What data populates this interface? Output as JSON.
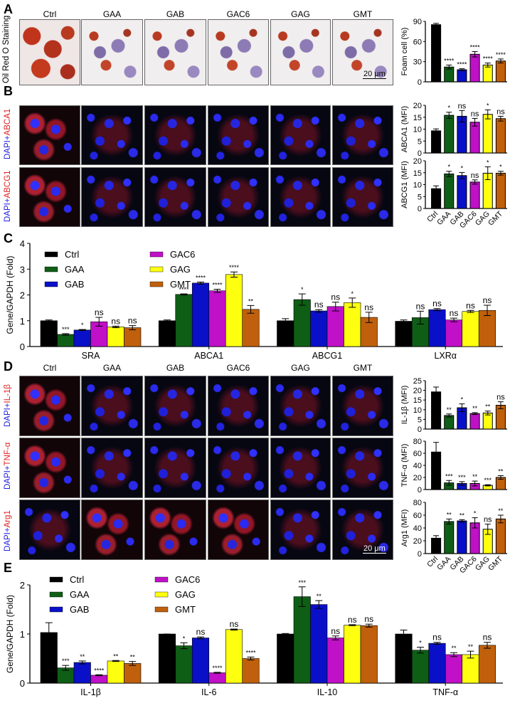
{
  "groups": [
    "Ctrl",
    "GAA",
    "GAB",
    "GAC6",
    "GAG",
    "GMT"
  ],
  "colors": {
    "Ctrl": "#000000",
    "GAA": "#0f5e16",
    "GAB": "#0a10c8",
    "GAC6": "#c010c8",
    "GAG": "#ffff10",
    "GMT": "#c0600c"
  },
  "panels": {
    "A": {
      "label": "A",
      "row_label": "Oil Red O Staining",
      "scale": "20 μm"
    },
    "B": {
      "label": "B",
      "row_labels": [
        {
          "dapi": "DAPI",
          "plus": "+",
          "marker": "ABCA1"
        },
        {
          "dapi": "DAPI",
          "plus": "+",
          "marker": "ABCG1"
        }
      ]
    },
    "C": {
      "label": "C"
    },
    "D": {
      "label": "D",
      "row_labels": [
        {
          "dapi": "DAPI",
          "plus": "+",
          "marker": "IL-1β"
        },
        {
          "dapi": "DAPI",
          "plus": "+",
          "marker": "TNF-α"
        },
        {
          "dapi": "DAPI",
          "plus": "+",
          "marker": "Arg1"
        }
      ],
      "scale": "20 μm"
    },
    "E": {
      "label": "E"
    }
  },
  "chart_data": [
    {
      "id": "A-foam",
      "type": "bar",
      "title": "",
      "ylabel": "Foam cell (%)",
      "ylim": [
        0,
        90
      ],
      "yticks": [
        0,
        30,
        60,
        90
      ],
      "categories": [
        "Ctrl",
        "GAA",
        "GAB",
        "GAC6",
        "GAG",
        "GMT"
      ],
      "values": [
        85,
        22,
        18,
        41,
        25,
        31
      ],
      "errors": [
        2,
        3,
        1.5,
        4,
        3,
        3
      ],
      "sig": [
        "",
        "****",
        "****",
        "****",
        "****",
        "****"
      ]
    },
    {
      "id": "B-abca1",
      "type": "bar",
      "ylabel": "ABCA1 (MFI)",
      "ylim": [
        0,
        20
      ],
      "yticks": [
        0,
        5,
        10,
        15,
        20
      ],
      "categories": [
        "Ctrl",
        "GAA",
        "GAB",
        "GAC6",
        "GAG",
        "GMT"
      ],
      "values": [
        9.3,
        15.8,
        15.4,
        12.9,
        16.2,
        14.4
      ],
      "errors": [
        0.8,
        1.3,
        2.4,
        1.6,
        1.9,
        1.0
      ],
      "sig": [
        "",
        "*",
        "ns",
        "ns",
        "*",
        "ns"
      ]
    },
    {
      "id": "B-abcg1",
      "type": "bar",
      "ylabel": "ABCG1  (MFI)",
      "ylim": [
        0,
        20
      ],
      "yticks": [
        0,
        5,
        10,
        15,
        20
      ],
      "categories": [
        "Ctrl",
        "GAA",
        "GAB",
        "GAC6",
        "GAG",
        "GMT"
      ],
      "values": [
        8.3,
        14.5,
        13.8,
        11.1,
        14.8,
        14.8
      ],
      "errors": [
        1.2,
        1.1,
        1.3,
        0.9,
        2.7,
        0.8
      ],
      "sig": [
        "",
        "*",
        "*",
        "ns",
        "*",
        "*"
      ]
    },
    {
      "id": "C-genes",
      "type": "bar",
      "ylabel": "Gene/GAPDH (Fold)",
      "ylim": [
        0,
        4
      ],
      "yticks": [
        0,
        1,
        2,
        3,
        4
      ],
      "categories": [
        "SRA",
        "ABCA1",
        "ABCG1",
        "LXRα"
      ],
      "legend": [
        "Ctrl",
        "GAA",
        "GAB",
        "GAC6",
        "GAG",
        "GMT"
      ],
      "series": [
        {
          "name": "Ctrl",
          "values": [
            1.0,
            1.0,
            1.0,
            0.98
          ],
          "errors": [
            0.03,
            0.03,
            0.08,
            0.05
          ],
          "sig": [
            "",
            "",
            "",
            ""
          ]
        },
        {
          "name": "GAA",
          "values": [
            0.47,
            2.02,
            1.82,
            1.12
          ],
          "errors": [
            0.03,
            0.02,
            0.22,
            0.25
          ],
          "sig": [
            "***",
            "****",
            "*",
            "ns"
          ]
        },
        {
          "name": "GAB",
          "values": [
            0.64,
            2.46,
            1.38,
            1.43
          ],
          "errors": [
            0.02,
            0.04,
            0.05,
            0.04
          ],
          "sig": [
            "*",
            "****",
            "ns",
            "ns"
          ]
        },
        {
          "name": "GAC6",
          "values": [
            0.96,
            2.16,
            1.55,
            1.03
          ],
          "errors": [
            0.17,
            0.06,
            0.17,
            0.07
          ],
          "sig": [
            "ns",
            "****",
            "ns",
            "ns"
          ]
        },
        {
          "name": "GAG",
          "values": [
            0.76,
            2.79,
            1.7,
            1.36
          ],
          "errors": [
            0.03,
            0.1,
            0.18,
            0.04
          ],
          "sig": [
            "ns",
            "****",
            "*",
            "ns"
          ]
        },
        {
          "name": "GMT",
          "values": [
            0.73,
            1.44,
            1.13,
            1.4
          ],
          "errors": [
            0.08,
            0.15,
            0.2,
            0.2
          ],
          "sig": [
            "ns",
            "**",
            "ns",
            "ns"
          ]
        }
      ]
    },
    {
      "id": "D-il1b",
      "type": "bar",
      "ylabel": "IL-1β (MFI)",
      "ylim": [
        0,
        25
      ],
      "yticks": [
        0,
        5,
        10,
        15,
        20,
        25
      ],
      "categories": [
        "Ctrl",
        "GAA",
        "GAB",
        "GAC6",
        "GAG",
        "GMT"
      ],
      "values": [
        19.2,
        7.0,
        11.0,
        8.0,
        8.3,
        12.3
      ],
      "errors": [
        2.5,
        0.8,
        2.0,
        0.5,
        1.0,
        1.8
      ],
      "sig": [
        "",
        "**",
        "*",
        "**",
        "**",
        "ns"
      ]
    },
    {
      "id": "D-tnfa",
      "type": "bar",
      "ylabel": "TNF-α (MFI)",
      "ylim": [
        0,
        80
      ],
      "yticks": [
        0,
        20,
        40,
        60,
        80
      ],
      "categories": [
        "Ctrl",
        "GAA",
        "GAB",
        "GAC6",
        "GAG",
        "GMT"
      ],
      "values": [
        62,
        11,
        10,
        10,
        7,
        20
      ],
      "errors": [
        16,
        4,
        3,
        4,
        1,
        3
      ],
      "sig": [
        "",
        "***",
        "***",
        "**",
        "***",
        "**"
      ]
    },
    {
      "id": "D-arg1",
      "type": "bar",
      "ylabel": "Arg1 (MFI)",
      "ylim": [
        0,
        80
      ],
      "yticks": [
        0,
        20,
        40,
        60,
        80
      ],
      "categories": [
        "Ctrl",
        "GAA",
        "GAB",
        "GAC6",
        "GAG",
        "GMT"
      ],
      "values": [
        24,
        50,
        51,
        48,
        38,
        54
      ],
      "errors": [
        4,
        4,
        2,
        8,
        8,
        6
      ],
      "sig": [
        "",
        "**",
        "**",
        "*",
        "ns",
        "**"
      ]
    },
    {
      "id": "E-genes",
      "type": "bar",
      "ylabel": "Gene/GAPDH (Fold)",
      "ylim": [
        0,
        2
      ],
      "yticks": [
        0,
        1,
        2
      ],
      "categories": [
        "IL-1β",
        "IL-6",
        "IL-10",
        "TNF-α"
      ],
      "legend": [
        "Ctrl",
        "GAA",
        "GAB",
        "GAC6",
        "GAG",
        "GMT"
      ],
      "series": [
        {
          "name": "Ctrl",
          "values": [
            1.03,
            1.0,
            1.0,
            1.0
          ],
          "errors": [
            0.2,
            0.0,
            0.01,
            0.08
          ],
          "sig": [
            "",
            "",
            "",
            ""
          ]
        },
        {
          "name": "GAA",
          "values": [
            0.31,
            0.76,
            1.76,
            0.67
          ],
          "errors": [
            0.05,
            0.06,
            0.2,
            0.06
          ],
          "sig": [
            "***",
            "*",
            "***",
            "*"
          ]
        },
        {
          "name": "GAB",
          "values": [
            0.42,
            0.92,
            1.6,
            0.81
          ],
          "errors": [
            0.03,
            0.02,
            0.08,
            0.02
          ],
          "sig": [
            "**",
            "ns",
            "**",
            "ns"
          ]
        },
        {
          "name": "GAC6",
          "values": [
            0.16,
            0.21,
            0.92,
            0.58
          ],
          "errors": [
            0.01,
            0.01,
            0.04,
            0.04
          ],
          "sig": [
            "****",
            "****",
            "ns",
            "**"
          ]
        },
        {
          "name": "GAG",
          "values": [
            0.45,
            1.09,
            1.18,
            0.58
          ],
          "errors": [
            0.01,
            0.01,
            0.01,
            0.07
          ],
          "sig": [
            "**",
            "ns",
            "ns",
            "**"
          ]
        },
        {
          "name": "GMT",
          "values": [
            0.4,
            0.5,
            1.17,
            0.77
          ],
          "errors": [
            0.04,
            0.03,
            0.03,
            0.06
          ],
          "sig": [
            "**",
            "****",
            "ns",
            "ns"
          ]
        }
      ]
    }
  ]
}
